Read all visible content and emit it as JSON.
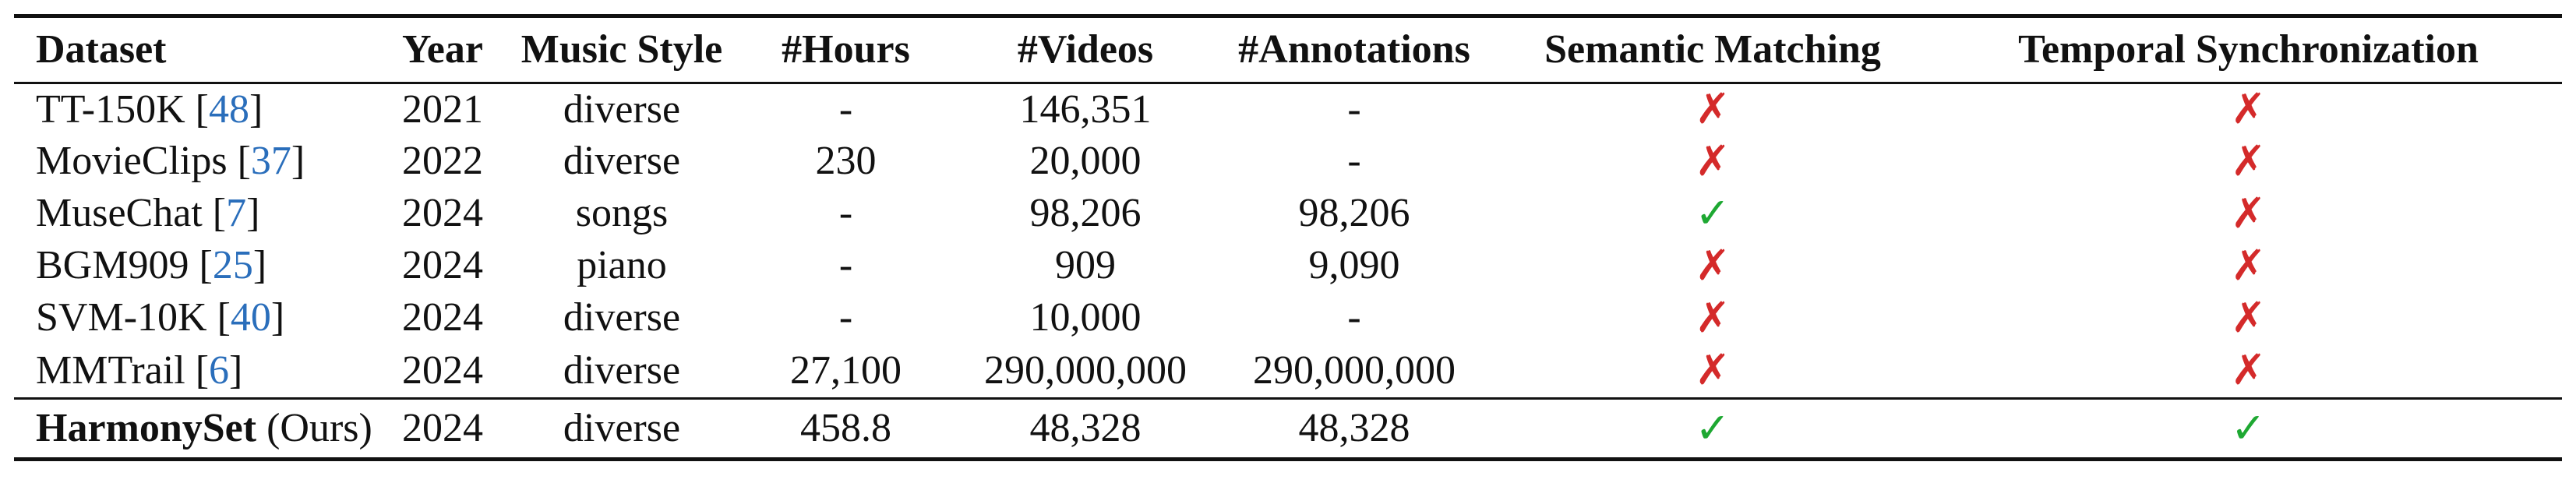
{
  "header": {
    "dataset": "Dataset",
    "year": "Year",
    "music_style": "Music Style",
    "hours": "#Hours",
    "videos": "#Videos",
    "annotations": "#Annotations",
    "semantic_matching": "Semantic Matching",
    "temporal_sync": "Temporal Synchronization"
  },
  "rows": [
    {
      "name": "TT-150K",
      "cite": "48",
      "year": "2021",
      "style": "diverse",
      "hours": "-",
      "videos": "146,351",
      "annotations": "-",
      "semantic": "✗",
      "temporal": "✗"
    },
    {
      "name": "MovieClips",
      "cite": "37",
      "year": "2022",
      "style": "diverse",
      "hours": "230",
      "videos": "20,000",
      "annotations": "-",
      "semantic": "✗",
      "temporal": "✗"
    },
    {
      "name": "MuseChat",
      "cite": "7",
      "year": "2024",
      "style": "songs",
      "hours": "-",
      "videos": "98,206",
      "annotations": "98,206",
      "semantic": "✓",
      "temporal": "✗"
    },
    {
      "name": "BGM909",
      "cite": "25",
      "year": "2024",
      "style": "piano",
      "hours": "-",
      "videos": "909",
      "annotations": "9,090",
      "semantic": "✗",
      "temporal": "✗"
    },
    {
      "name": "SVM-10K",
      "cite": "40",
      "year": "2024",
      "style": "diverse",
      "hours": "-",
      "videos": "10,000",
      "annotations": "-",
      "semantic": "✗",
      "temporal": "✗"
    },
    {
      "name": "MMTrail",
      "cite": "6",
      "year": "2024",
      "style": "diverse",
      "hours": "27,100",
      "videos": "290,000,000",
      "annotations": "290,000,000",
      "semantic": "✗",
      "temporal": "✗"
    }
  ],
  "ours": {
    "name": "HarmonySet",
    "suffix": "(Ours)",
    "year": "2024",
    "style": "diverse",
    "hours": "458.8",
    "videos": "48,328",
    "annotations": "48,328",
    "semantic": "✓",
    "temporal": "✓"
  },
  "colors": {
    "cross": "#d42a2a",
    "check": "#1ea832",
    "citation": "#2a6ebb"
  }
}
